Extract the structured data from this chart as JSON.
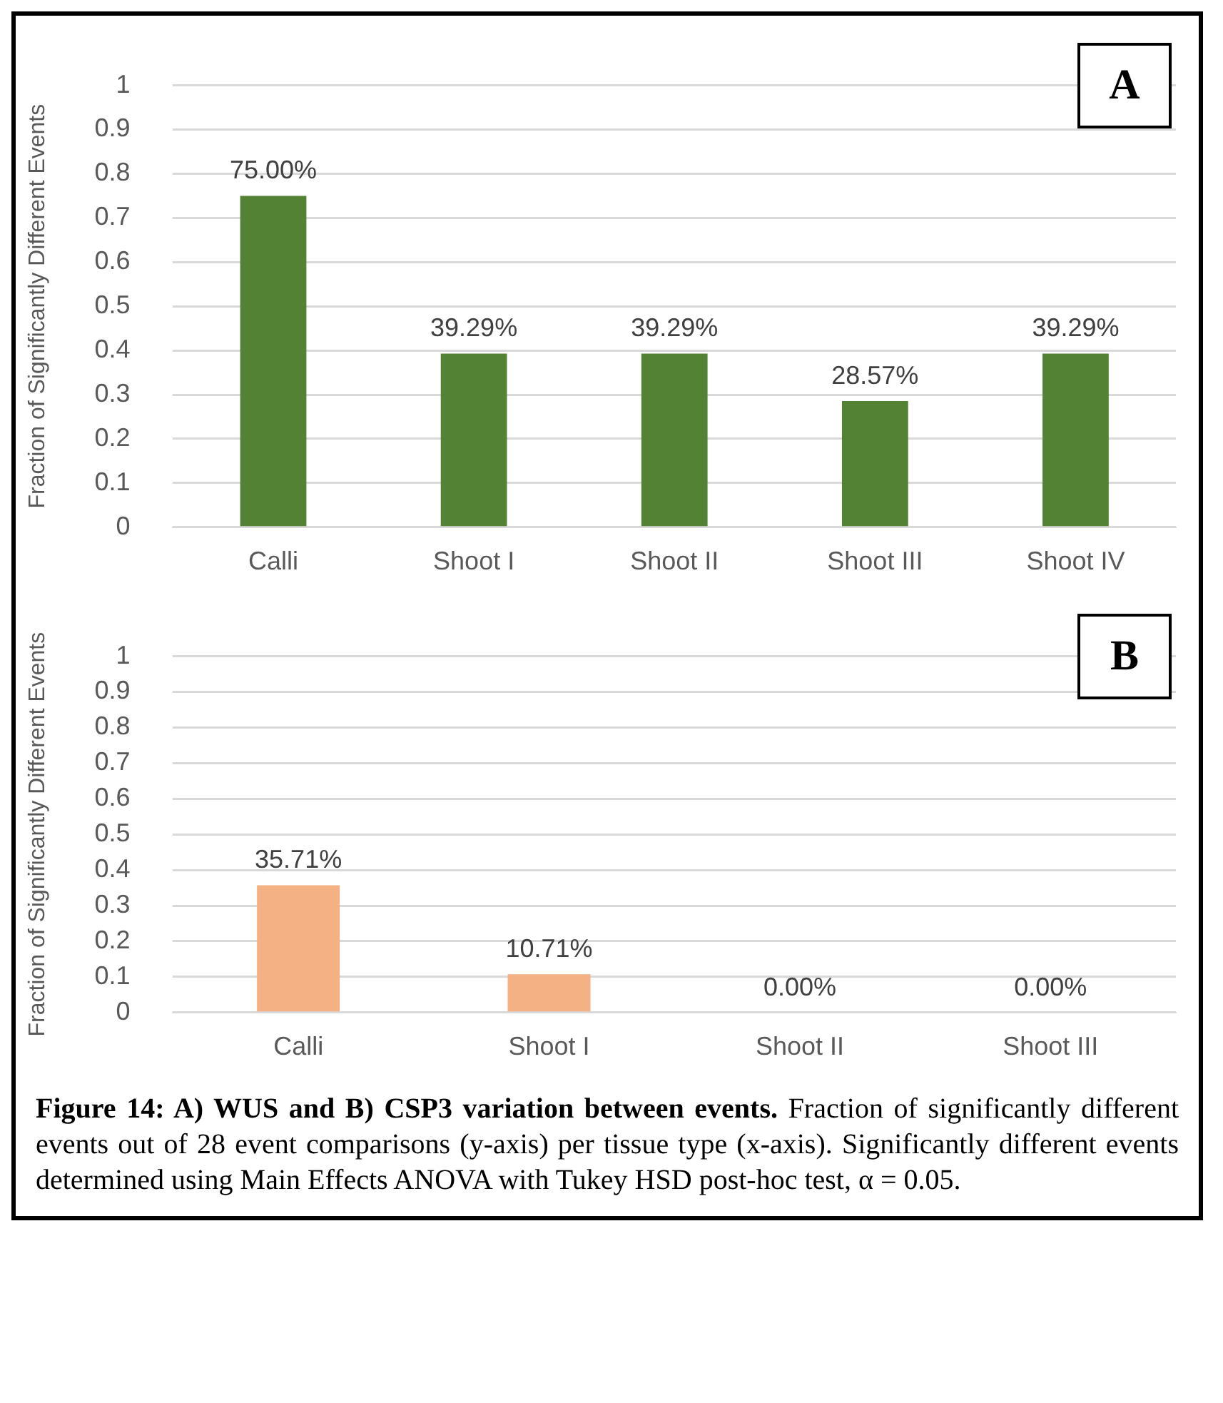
{
  "chart_data": [
    {
      "type": "bar",
      "title": "A",
      "ylabel": "Fraction of Significantly Different Events",
      "categories": [
        "Calli",
        "Shoot I",
        "Shoot II",
        "Shoot III",
        "Shoot IV"
      ],
      "values": [
        0.75,
        0.3929,
        0.3929,
        0.2857,
        0.3929
      ],
      "value_labels": [
        "75.00%",
        "39.29%",
        "39.29%",
        "28.57%",
        "39.29%"
      ],
      "color": "#548235",
      "ylim": [
        0,
        1
      ],
      "yticks": [
        0,
        0.1,
        0.2,
        0.3,
        0.4,
        0.5,
        0.6,
        0.7,
        0.8,
        0.9,
        1
      ],
      "grid": "y",
      "legend": false
    },
    {
      "type": "bar",
      "title": "B",
      "ylabel": "Fraction of Significantly Different Events",
      "categories": [
        "Calli",
        "Shoot I",
        "Shoot II",
        "Shoot III"
      ],
      "values": [
        0.3571,
        0.1071,
        0,
        0
      ],
      "value_labels": [
        "35.71%",
        "10.71%",
        "0.00%",
        "0.00%"
      ],
      "color": "#f4b183",
      "ylim": [
        0,
        1
      ],
      "yticks": [
        0,
        0.1,
        0.2,
        0.3,
        0.4,
        0.5,
        0.6,
        0.7,
        0.8,
        0.9,
        1
      ],
      "grid": "y",
      "legend": false,
      "annotations": [
        "Figure 14: A) WUS and B) CSP3 variation between events.",
        "Fraction of significantly different events out of 28 event comparisons (y-axis) per tissue type (x-axis). Significantly different events determined using Main Effects ANOVA with Tukey HSD post-hoc test, α = 0.05."
      ]
    }
  ]
}
